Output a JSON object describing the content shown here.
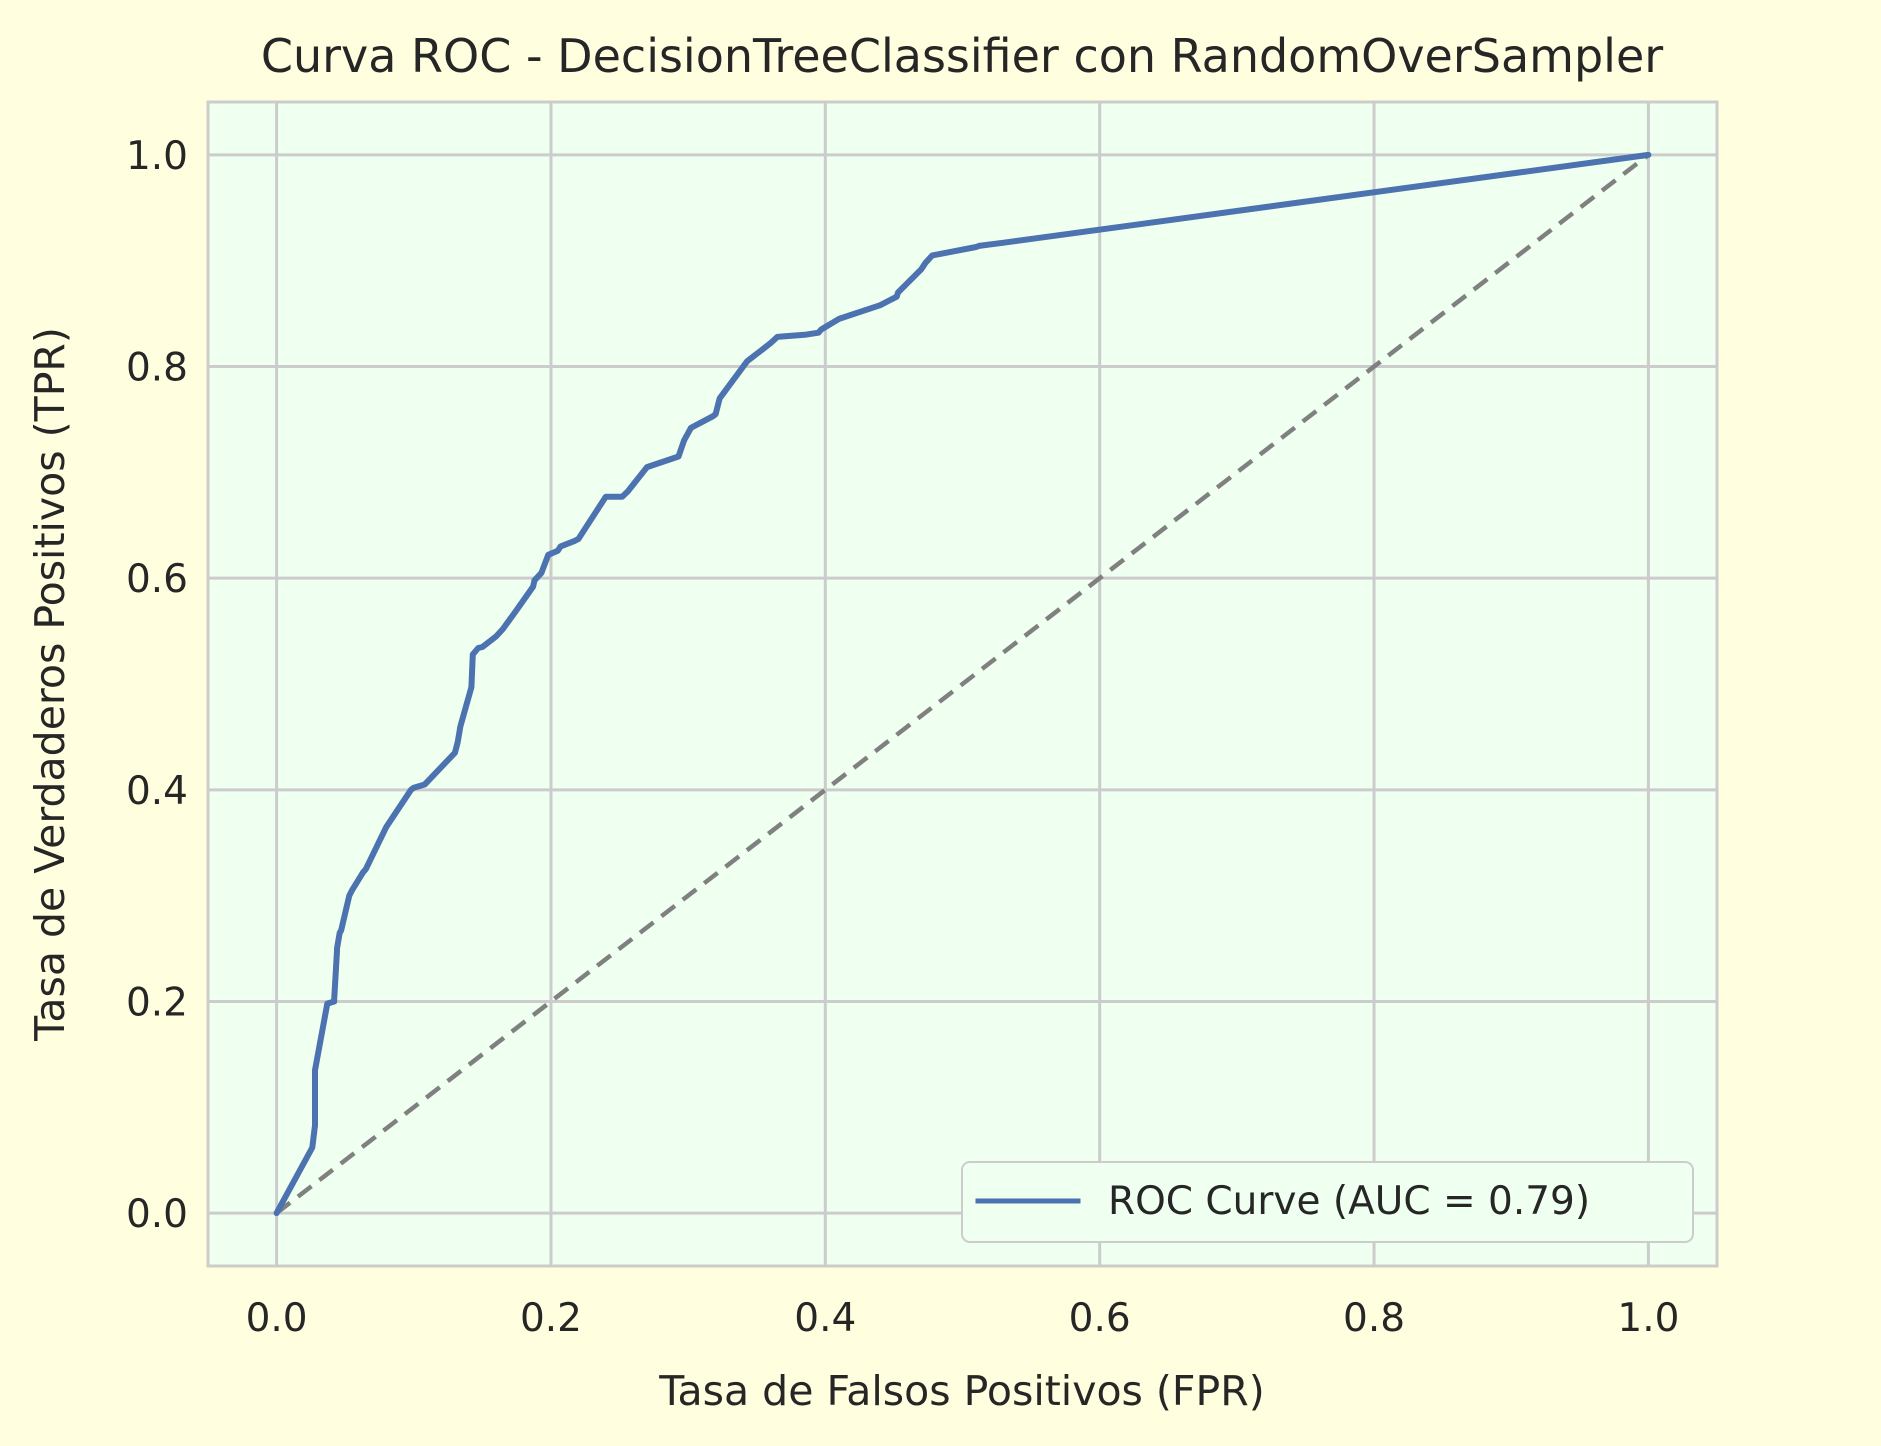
{
  "chart_data": {
    "type": "line",
    "title": "Curva ROC - DecisionTreeClassifier con RandomOverSampler",
    "xlabel": "Tasa de Falsos Positivos (FPR)",
    "ylabel": "Tasa de Verdaderos Positivos (TPR)",
    "xlim": [
      -0.05,
      1.05
    ],
    "ylim": [
      -0.05,
      1.05
    ],
    "xticks": [
      "0.0",
      "0.2",
      "0.4",
      "0.6",
      "0.8",
      "1.0"
    ],
    "yticks": [
      "0.0",
      "0.2",
      "0.4",
      "0.6",
      "0.8",
      "1.0"
    ],
    "grid": true,
    "legend_position": "lower-right",
    "series": [
      {
        "name": "ROC Curve (AUC = 0.79)",
        "color": "#4c72b0",
        "style": "solid",
        "x": [
          0.0,
          0.026,
          0.027,
          0.028,
          0.028,
          0.037,
          0.042,
          0.042,
          0.044,
          0.044,
          0.046,
          0.047,
          0.053,
          0.055,
          0.063,
          0.065,
          0.08,
          0.098,
          0.1,
          0.108,
          0.13,
          0.132,
          0.134,
          0.142,
          0.143,
          0.147,
          0.15,
          0.16,
          0.165,
          0.175,
          0.187,
          0.188,
          0.193,
          0.198,
          0.205,
          0.207,
          0.217,
          0.22,
          0.24,
          0.252,
          0.256,
          0.27,
          0.293,
          0.297,
          0.302,
          0.318,
          0.32,
          0.323,
          0.343,
          0.36,
          0.365,
          0.385,
          0.395,
          0.397,
          0.41,
          0.44,
          0.452,
          0.453,
          0.47,
          0.473,
          0.478,
          0.51,
          0.512,
          0.53,
          1.0
        ],
        "y": [
          0.0,
          0.062,
          0.072,
          0.083,
          0.135,
          0.198,
          0.2,
          0.202,
          0.248,
          0.25,
          0.265,
          0.267,
          0.3,
          0.305,
          0.322,
          0.325,
          0.365,
          0.4,
          0.402,
          0.405,
          0.435,
          0.445,
          0.46,
          0.497,
          0.528,
          0.534,
          0.535,
          0.545,
          0.552,
          0.57,
          0.592,
          0.598,
          0.605,
          0.622,
          0.626,
          0.63,
          0.635,
          0.637,
          0.677,
          0.677,
          0.682,
          0.705,
          0.715,
          0.73,
          0.742,
          0.753,
          0.755,
          0.77,
          0.805,
          0.822,
          0.828,
          0.83,
          0.832,
          0.835,
          0.845,
          0.858,
          0.866,
          0.87,
          0.892,
          0.898,
          0.905,
          0.913,
          0.914,
          0.917,
          1.0
        ]
      },
      {
        "color": "#808080",
        "style": "dashed",
        "x": [
          0.0,
          1.0
        ],
        "y": [
          0.0,
          1.0
        ]
      }
    ]
  }
}
